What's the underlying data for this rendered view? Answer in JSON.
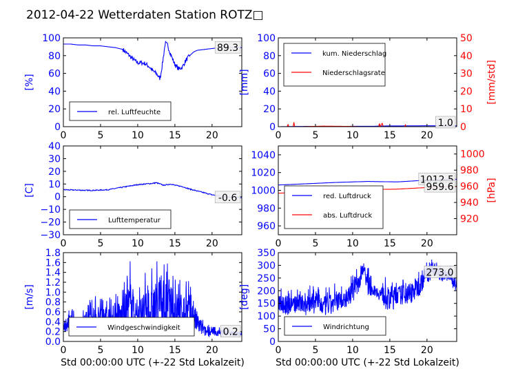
{
  "title": "2012-04-22 Wetterdaten Station ROTZ□",
  "colors": {
    "primary": "#0000ff",
    "secondary": "#ff0000",
    "axis": "#000000",
    "background": "#ffffff"
  },
  "chart_data": [
    {
      "type": "line",
      "ylabel": "[%]",
      "xlabel": "",
      "xlim": [
        0,
        24
      ],
      "ylim": [
        0,
        100
      ],
      "xticks": [
        "0",
        "5",
        "10",
        "15",
        "20"
      ],
      "yticks": [
        "0",
        "20",
        "40",
        "60",
        "80",
        "100"
      ],
      "legend": {
        "placement": "lower-left",
        "entries": [
          "rel. Luftfeuchte"
        ]
      },
      "annotation": "89.3",
      "grid": false,
      "series": [
        {
          "name": "rel. Luftfeuchte",
          "color": "#0000ff",
          "x": [
            0,
            1,
            2,
            3,
            4,
            5,
            6,
            7,
            8,
            8.5,
            9,
            9.5,
            10,
            10.5,
            11,
            11.5,
            12,
            12.5,
            13,
            13.3,
            13.7,
            14,
            14.5,
            15,
            15.5,
            16,
            16.5,
            17,
            17.5,
            18,
            19,
            20,
            21,
            22,
            23,
            24
          ],
          "y": [
            93,
            93,
            92,
            92,
            91,
            91,
            90,
            89,
            87,
            83,
            79,
            75,
            72,
            72,
            71,
            68,
            63,
            60,
            54,
            69,
            94,
            92,
            80,
            70,
            65,
            67,
            75,
            80,
            84,
            86,
            87,
            88,
            89,
            89,
            89,
            89
          ]
        }
      ]
    },
    {
      "type": "line",
      "ylabel": "[mm]",
      "y2label": "[mm/std]",
      "xlabel": "",
      "xlim": [
        0,
        24
      ],
      "ylim": [
        0,
        100
      ],
      "y2lim": [
        0,
        50
      ],
      "xticks": [
        "0",
        "5",
        "10",
        "15",
        "20"
      ],
      "yticks": [
        "0",
        "20",
        "40",
        "60",
        "80",
        "100"
      ],
      "y2ticks": [
        "0",
        "10",
        "20",
        "30",
        "40",
        "50"
      ],
      "legend": {
        "placement": "upper-left",
        "entries": [
          "kum. Niederschlag",
          "Niederschlagsrate"
        ]
      },
      "annotation": "1.0",
      "grid": false,
      "series": [
        {
          "name": "kum. Niederschlag",
          "axis": "left",
          "color": "#0000ff",
          "x": [
            0,
            2,
            4,
            13,
            14,
            17,
            20,
            24
          ],
          "y": [
            0,
            0.2,
            0.3,
            0.5,
            0.8,
            0.9,
            1.0,
            1.0
          ]
        },
        {
          "name": "Niederschlagsrate",
          "axis": "right",
          "color": "#ff0000",
          "x": [
            0,
            1.2,
            1.3,
            1.4,
            2.0,
            2.1,
            2.2,
            3,
            6,
            9,
            11,
            13.5,
            13.6,
            13.7,
            14.0,
            14.1,
            15,
            17,
            17.1,
            17.2,
            20,
            24
          ],
          "y": [
            0,
            0,
            1.5,
            0,
            0,
            2.5,
            0,
            0,
            0.3,
            0.2,
            0,
            0,
            2,
            0,
            2,
            0,
            0,
            0,
            1,
            0,
            0,
            0
          ]
        }
      ]
    },
    {
      "type": "line",
      "ylabel": "[C]",
      "xlabel": "",
      "xlim": [
        0,
        24
      ],
      "ylim": [
        -30,
        40
      ],
      "xticks": [
        "0",
        "5",
        "10",
        "15",
        "20"
      ],
      "yticks": [
        "−30",
        "−20",
        "−10",
        "0",
        "10",
        "20",
        "30",
        "40"
      ],
      "legend": {
        "placement": "lower-left",
        "entries": [
          "Lufttemperatur"
        ]
      },
      "annotation": "-0.6",
      "grid": false,
      "series": [
        {
          "name": "Lufttemperatur",
          "color": "#0000ff",
          "x": [
            0,
            1,
            2,
            3,
            4,
            5,
            6,
            7,
            8,
            9,
            10,
            11,
            12,
            12.5,
            13,
            13.5,
            14,
            14.5,
            15,
            16,
            17,
            18,
            19,
            20,
            21,
            22,
            23,
            24
          ],
          "y": [
            5.5,
            5.3,
            5.2,
            5.0,
            5.0,
            5.2,
            5.5,
            6.5,
            7.5,
            8.5,
            9.5,
            10,
            10.5,
            11,
            10,
            9,
            9.5,
            10,
            9,
            8,
            6,
            4.5,
            3,
            1.5,
            0.5,
            -0.2,
            -0.5,
            -0.6
          ]
        }
      ]
    },
    {
      "type": "line",
      "ylabel": "",
      "y2label": "[hPa]",
      "xlabel": "",
      "xlim": [
        0,
        24
      ],
      "ylim": [
        950,
        1050
      ],
      "y2lim": [
        900,
        1010
      ],
      "xticks": [
        "0",
        "5",
        "10",
        "15",
        "20"
      ],
      "yticks": [
        "960",
        "980",
        "1000",
        "1020",
        "1040"
      ],
      "y2ticks": [
        "920",
        "940",
        "960",
        "980",
        "1000"
      ],
      "legend": {
        "placement": "lower-left",
        "entries": [
          "red. Luftdruck",
          "abs. Luftdruck"
        ]
      },
      "annotations": [
        "1012.5",
        "959.6"
      ],
      "grid": false,
      "series": [
        {
          "name": "red. Luftdruck",
          "axis": "left",
          "color": "#0000ff",
          "x": [
            0,
            4,
            8,
            12,
            16,
            20,
            24
          ],
          "y": [
            1006,
            1007.5,
            1009,
            1010,
            1009.5,
            1011.5,
            1012.5
          ]
        },
        {
          "name": "abs. Luftdruck",
          "axis": "right",
          "color": "#ff0000",
          "x": [
            0,
            4,
            8,
            12,
            16,
            20,
            24
          ],
          "y": [
            951.5,
            953,
            954.5,
            956,
            956.5,
            958.5,
            959.6
          ]
        }
      ]
    },
    {
      "type": "line",
      "ylabel": "[m/s]",
      "xlabel": "Std 00:00:00 UTC (+-22 Std Lokalzeit)",
      "xlim": [
        0,
        24
      ],
      "ylim": [
        0,
        1.8
      ],
      "xticks": [
        "0",
        "5",
        "10",
        "15",
        "20"
      ],
      "yticks": [
        "0.0",
        "0.2",
        "0.4",
        "0.6",
        "0.8",
        "1.0",
        "1.2",
        "1.4",
        "1.6",
        "1.8"
      ],
      "legend": {
        "placement": "lower-center",
        "entries": [
          "Windgeschwindigkeit"
        ]
      },
      "annotation": "0.2",
      "grid": false,
      "series": [
        {
          "name": "Windgeschwindigkeit",
          "color": "#0000ff",
          "style": "noisy-band",
          "x": [
            0,
            1,
            2,
            3,
            4,
            5,
            6,
            7,
            8,
            9,
            9.5,
            10,
            11,
            11.5,
            12,
            13,
            14,
            15,
            16,
            17,
            18,
            19,
            20,
            21,
            22,
            23,
            24
          ],
          "low": [
            0.2,
            0.2,
            0.2,
            0.15,
            0.2,
            0.2,
            0.2,
            0.2,
            0.2,
            0.2,
            0.2,
            0.2,
            0.2,
            0.2,
            0.2,
            0.2,
            0.2,
            0.2,
            0.2,
            0.2,
            0.15,
            0.1,
            0.1,
            0.1,
            0.1,
            0.1,
            0.1
          ],
          "high": [
            0.5,
            0.7,
            0.6,
            0.8,
            0.9,
            1.0,
            0.9,
            1.0,
            1.1,
            1.7,
            1.2,
            1.1,
            1.4,
            1.1,
            1.6,
            1.7,
            1.6,
            1.4,
            1.3,
            1.3,
            0.8,
            0.4,
            0.3,
            0.3,
            0.3,
            0.25,
            0.25
          ]
        }
      ]
    },
    {
      "type": "line",
      "ylabel": "[deg]",
      "xlabel": "Std 00:00:00 UTC (+-22 Std Lokalzeit)",
      "xlim": [
        0,
        24
      ],
      "ylim": [
        0,
        350
      ],
      "xticks": [
        "0",
        "5",
        "10",
        "15",
        "20"
      ],
      "yticks": [
        "0",
        "50",
        "100",
        "150",
        "200",
        "250",
        "300",
        "350"
      ],
      "legend": {
        "placement": "lower-left",
        "entries": [
          "Windrichtung"
        ]
      },
      "annotation": "273.0",
      "grid": false,
      "series": [
        {
          "name": "Windrichtung",
          "color": "#0000ff",
          "style": "noisy-band",
          "x": [
            0,
            1,
            2,
            3,
            4,
            5,
            6,
            7,
            8,
            9,
            10,
            11,
            11.5,
            12,
            13,
            14,
            15,
            16,
            17,
            18,
            19,
            20,
            21,
            22,
            23,
            24
          ],
          "low": [
            120,
            100,
            110,
            110,
            100,
            110,
            100,
            100,
            120,
            130,
            150,
            200,
            280,
            180,
            180,
            150,
            100,
            150,
            140,
            150,
            180,
            230,
            250,
            240,
            230,
            190
          ],
          "high": [
            240,
            220,
            210,
            220,
            230,
            230,
            210,
            220,
            240,
            220,
            270,
            320,
            330,
            300,
            230,
            250,
            260,
            250,
            260,
            280,
            300,
            330,
            320,
            310,
            300,
            280
          ]
        }
      ]
    }
  ]
}
